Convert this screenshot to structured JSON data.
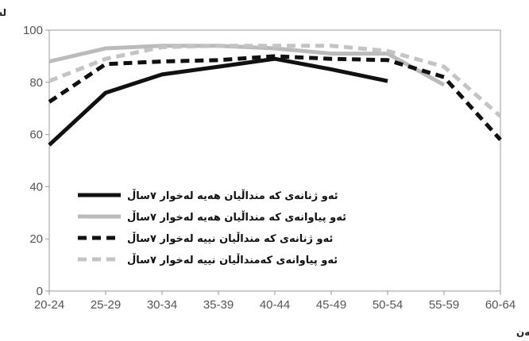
{
  "chart_data": {
    "type": "line",
    "title": "",
    "ylabel": "لەسەدا",
    "xlabel": "تەمەن",
    "ylim": [
      0,
      100
    ],
    "yticks": [
      0,
      20,
      40,
      60,
      80,
      100
    ],
    "categories": [
      "20-24",
      "25-29",
      "30-34",
      "35-39",
      "40-44",
      "45-49",
      "50-54",
      "55-59",
      "60-64"
    ],
    "grid": false,
    "legend_position": "center-left",
    "series": [
      {
        "name": "ئەو ژنانەی کە منداڵیان هەیە   لەخوار ٧ساڵ",
        "values": [
          56,
          76,
          83,
          86,
          89,
          85,
          80.5,
          null,
          null
        ],
        "color": "#111111",
        "style": "solid"
      },
      {
        "name": "ئەو پیاوانەی کە منداڵیان هەیە لەخوار ٧ساڵ",
        "values": [
          88,
          93,
          94,
          94,
          93,
          91,
          91,
          79,
          null
        ],
        "color": "#bbbbbb",
        "style": "solid"
      },
      {
        "name": "ئەو ژنانەی کە منداڵیان نییە لەخوار ٧ساڵ",
        "values": [
          72.5,
          87,
          88,
          88.5,
          90,
          89,
          88.5,
          82,
          58
        ],
        "color": "#111111",
        "style": "dashed"
      },
      {
        "name": "ئەو پیاوانەی کەمنداڵیان نییە لەخوار ٧ساڵ",
        "values": [
          80.5,
          89,
          93.5,
          94,
          94,
          94,
          92,
          86,
          67
        ],
        "color": "#c4c4c4",
        "style": "dashed"
      }
    ]
  }
}
